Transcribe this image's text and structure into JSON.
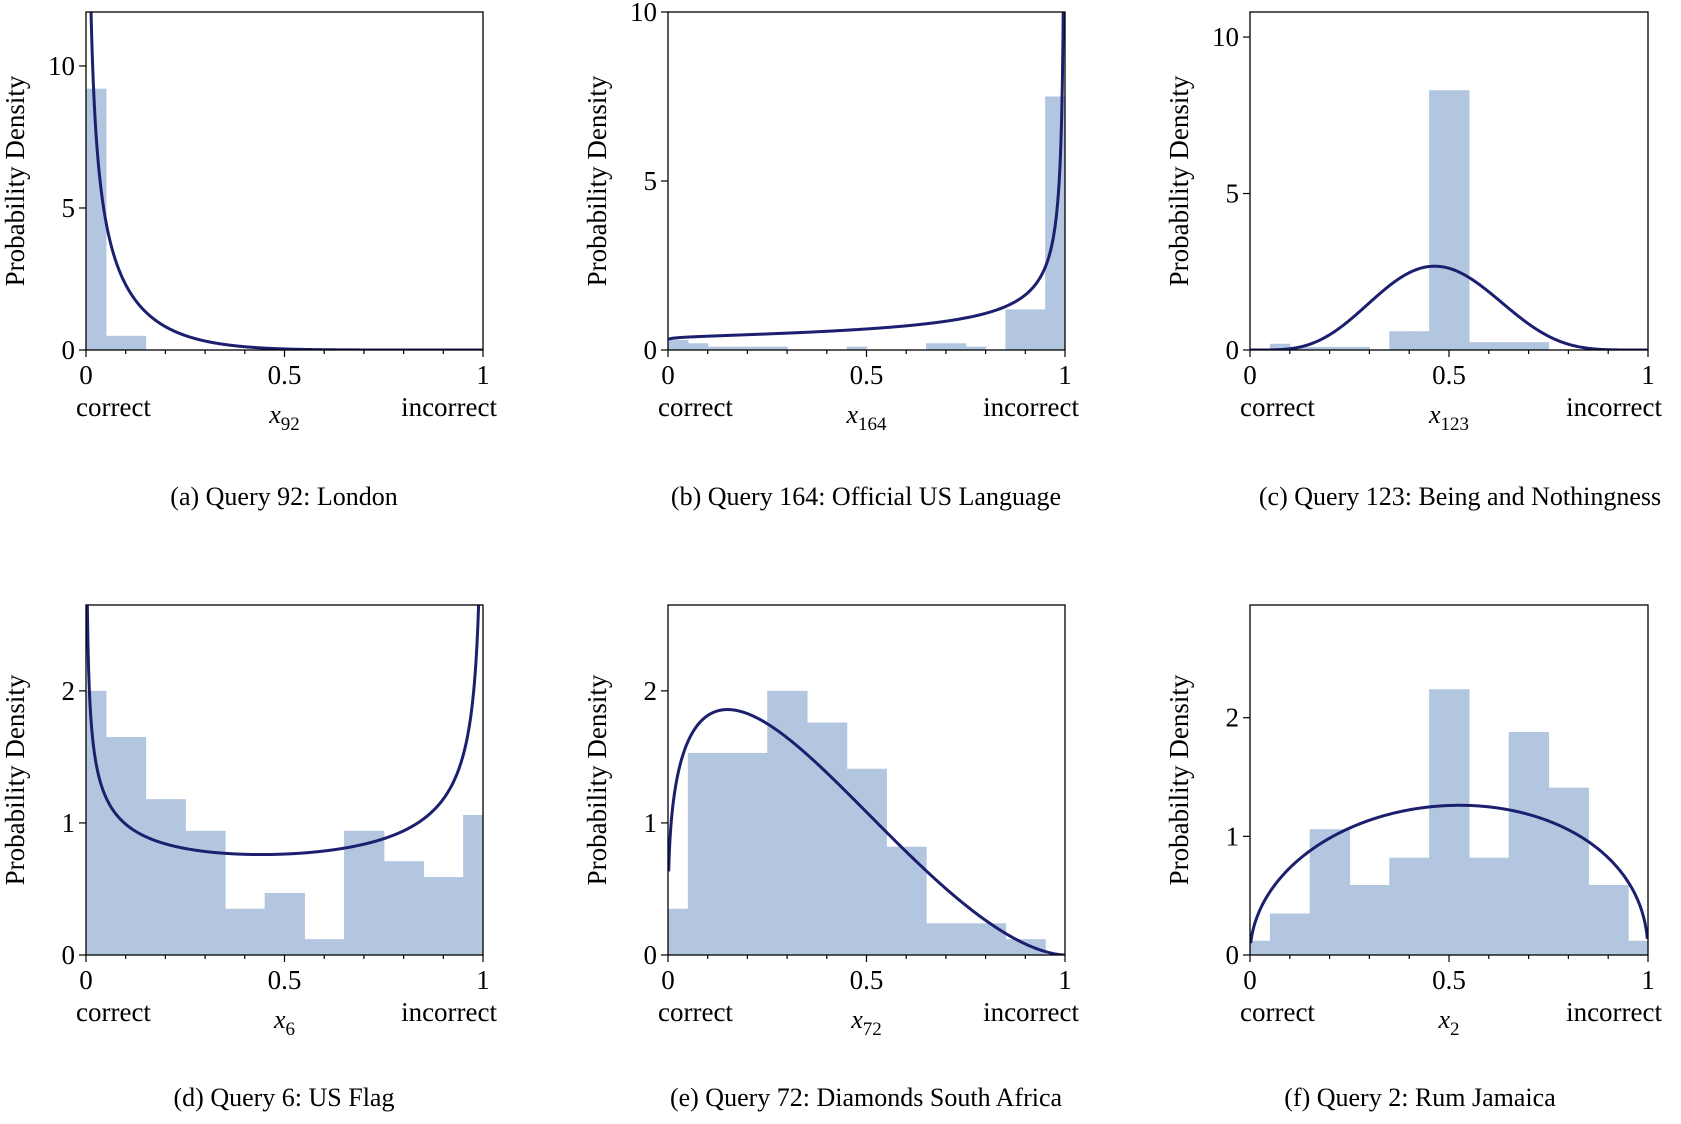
{
  "colors": {
    "bar": "#b3c6e0",
    "curve": "#1b1f6e",
    "axis": "#000000"
  },
  "chart_data": [
    {
      "type": "bar",
      "caption": "(a) Query 92: London",
      "ylabel": "Probability Density",
      "xvar": "x",
      "xsub": "92",
      "xlabel_left": "correct",
      "xlabel_right": "incorrect",
      "xticks": [
        "0",
        "0.5",
        "1"
      ],
      "xtick_values": [
        0,
        0.5,
        1
      ],
      "yticks": [
        "0",
        "5",
        "10"
      ],
      "ytick_values": [
        0,
        5,
        10
      ],
      "ylim": [
        0,
        11.9
      ],
      "xlim": [
        0,
        1
      ],
      "bin_width": 0.05,
      "bins": [
        {
          "x": 0.0,
          "h": 9.2
        },
        {
          "x": 0.05,
          "h": 0.5
        },
        {
          "x": 0.1,
          "h": 0.5
        },
        {
          "x": 0.45,
          "h": 0.05
        },
        {
          "x": 0.5,
          "h": 0.05
        },
        {
          "x": 0.55,
          "h": 0.05
        }
      ],
      "curve": {
        "a": 0.45,
        "b": 6.5,
        "scale": 1.0
      }
    },
    {
      "type": "bar",
      "caption": "(b) Query 164: Official US Language",
      "ylabel": "Probability Density",
      "xvar": "x",
      "xsub": "164",
      "xlabel_left": "correct",
      "xlabel_right": "incorrect",
      "xticks": [
        "0",
        "0.5",
        "1"
      ],
      "xtick_values": [
        0,
        0.5,
        1
      ],
      "yticks": [
        "0",
        "5",
        "10"
      ],
      "ytick_values": [
        0,
        5,
        10
      ],
      "ylim": [
        0,
        10
      ],
      "xlim": [
        0,
        1
      ],
      "bin_width": 0.05,
      "bins": [
        {
          "x": 0.0,
          "h": 0.3
        },
        {
          "x": 0.05,
          "h": 0.2
        },
        {
          "x": 0.1,
          "h": 0.1
        },
        {
          "x": 0.15,
          "h": 0.1
        },
        {
          "x": 0.2,
          "h": 0.1
        },
        {
          "x": 0.25,
          "h": 0.1
        },
        {
          "x": 0.45,
          "h": 0.1
        },
        {
          "x": 0.65,
          "h": 0.2
        },
        {
          "x": 0.7,
          "h": 0.2
        },
        {
          "x": 0.75,
          "h": 0.1
        },
        {
          "x": 0.85,
          "h": 1.2
        },
        {
          "x": 0.9,
          "h": 1.2
        },
        {
          "x": 0.95,
          "h": 7.5
        }
      ],
      "curve": {
        "a": 1.05,
        "b": 0.42,
        "scale": 1.0
      }
    },
    {
      "type": "bar",
      "caption": "(c) Query 123: Being and Nothingness",
      "ylabel": "Probability Density",
      "xvar": "x",
      "xsub": "123",
      "xlabel_left": "correct",
      "xlabel_right": "incorrect",
      "xticks": [
        "0",
        "0.5",
        "1"
      ],
      "xtick_values": [
        0,
        0.5,
        1
      ],
      "yticks": [
        "0",
        "5",
        "10"
      ],
      "ytick_values": [
        0,
        5,
        10
      ],
      "ylim": [
        0,
        10.8
      ],
      "xlim": [
        0,
        1
      ],
      "bin_width": 0.05,
      "bins": [
        {
          "x": 0.05,
          "h": 0.2
        },
        {
          "x": 0.1,
          "h": 0.1
        },
        {
          "x": 0.15,
          "h": 0.1
        },
        {
          "x": 0.2,
          "h": 0.1
        },
        {
          "x": 0.25,
          "h": 0.1
        },
        {
          "x": 0.35,
          "h": 0.6
        },
        {
          "x": 0.4,
          "h": 0.6
        },
        {
          "x": 0.45,
          "h": 8.3
        },
        {
          "x": 0.5,
          "h": 8.3
        },
        {
          "x": 0.55,
          "h": 0.25
        },
        {
          "x": 0.6,
          "h": 0.25
        },
        {
          "x": 0.65,
          "h": 0.25
        },
        {
          "x": 0.7,
          "h": 0.25
        }
      ],
      "curve": {
        "a": 5.5,
        "b": 6.2,
        "scale": 1.0
      }
    },
    {
      "type": "bar",
      "caption": "(d) Query 6: US Flag",
      "ylabel": "Probability Density",
      "xvar": "x",
      "xsub": "6",
      "xlabel_left": "correct",
      "xlabel_right": "incorrect",
      "xticks": [
        "0",
        "0.5",
        "1"
      ],
      "xtick_values": [
        0,
        0.5,
        1
      ],
      "yticks": [
        "0",
        "1",
        "2"
      ],
      "ytick_values": [
        0,
        1,
        2
      ],
      "ylim": [
        0,
        2.65
      ],
      "xlim": [
        0,
        1
      ],
      "bin_width": 0.05,
      "bins": [
        {
          "x": 0.0,
          "h": 2.0
        },
        {
          "x": 0.05,
          "h": 1.65
        },
        {
          "x": 0.1,
          "h": 1.65
        },
        {
          "x": 0.15,
          "h": 1.18
        },
        {
          "x": 0.2,
          "h": 1.18
        },
        {
          "x": 0.25,
          "h": 0.94
        },
        {
          "x": 0.3,
          "h": 0.94
        },
        {
          "x": 0.35,
          "h": 0.35
        },
        {
          "x": 0.4,
          "h": 0.35
        },
        {
          "x": 0.45,
          "h": 0.47
        },
        {
          "x": 0.5,
          "h": 0.47
        },
        {
          "x": 0.55,
          "h": 0.12
        },
        {
          "x": 0.6,
          "h": 0.12
        },
        {
          "x": 0.65,
          "h": 0.94
        },
        {
          "x": 0.7,
          "h": 0.94
        },
        {
          "x": 0.75,
          "h": 0.71
        },
        {
          "x": 0.8,
          "h": 0.71
        },
        {
          "x": 0.85,
          "h": 0.59
        },
        {
          "x": 0.9,
          "h": 0.59
        },
        {
          "x": 0.95,
          "h": 1.06
        }
      ],
      "curve": {
        "a": 0.7,
        "b": 0.62,
        "scale": 1.0
      }
    },
    {
      "type": "bar",
      "caption": "(e) Query 72: Diamonds South Africa",
      "ylabel": "Probability Density",
      "xvar": "x",
      "xsub": "72",
      "xlabel_left": "correct",
      "xlabel_right": "incorrect",
      "xticks": [
        "0",
        "0.5",
        "1"
      ],
      "xtick_values": [
        0,
        0.5,
        1
      ],
      "yticks": [
        "0",
        "1",
        "2"
      ],
      "ytick_values": [
        0,
        1,
        2
      ],
      "ylim": [
        0,
        2.65
      ],
      "xlim": [
        0,
        1
      ],
      "bin_width": 0.05,
      "bins": [
        {
          "x": 0.0,
          "h": 0.35
        },
        {
          "x": 0.05,
          "h": 1.53
        },
        {
          "x": 0.1,
          "h": 1.53
        },
        {
          "x": 0.15,
          "h": 1.53
        },
        {
          "x": 0.2,
          "h": 1.53
        },
        {
          "x": 0.25,
          "h": 2.0
        },
        {
          "x": 0.3,
          "h": 2.0
        },
        {
          "x": 0.35,
          "h": 1.76
        },
        {
          "x": 0.4,
          "h": 1.76
        },
        {
          "x": 0.45,
          "h": 1.41
        },
        {
          "x": 0.5,
          "h": 1.41
        },
        {
          "x": 0.55,
          "h": 0.82
        },
        {
          "x": 0.6,
          "h": 0.82
        },
        {
          "x": 0.65,
          "h": 0.24
        },
        {
          "x": 0.7,
          "h": 0.24
        },
        {
          "x": 0.75,
          "h": 0.24
        },
        {
          "x": 0.8,
          "h": 0.24
        },
        {
          "x": 0.85,
          "h": 0.12
        },
        {
          "x": 0.9,
          "h": 0.12
        }
      ],
      "curve": {
        "a": 1.3,
        "b": 2.7,
        "scale": 1.0
      }
    },
    {
      "type": "bar",
      "caption": "(f) Query 2: Rum Jamaica",
      "ylabel": "Probability Density",
      "xvar": "x",
      "xsub": "2",
      "xlabel_left": "correct",
      "xlabel_right": "incorrect",
      "xticks": [
        "0",
        "0.5",
        "1"
      ],
      "xtick_values": [
        0,
        0.5,
        1
      ],
      "yticks": [
        "0",
        "1",
        "2"
      ],
      "ytick_values": [
        0,
        1,
        2
      ],
      "ylim": [
        0,
        2.95
      ],
      "xlim": [
        0,
        1
      ],
      "bin_width": 0.05,
      "bins": [
        {
          "x": 0.0,
          "h": 0.12
        },
        {
          "x": 0.05,
          "h": 0.35
        },
        {
          "x": 0.1,
          "h": 0.35
        },
        {
          "x": 0.15,
          "h": 1.06
        },
        {
          "x": 0.2,
          "h": 1.06
        },
        {
          "x": 0.25,
          "h": 0.59
        },
        {
          "x": 0.3,
          "h": 0.59
        },
        {
          "x": 0.35,
          "h": 0.82
        },
        {
          "x": 0.4,
          "h": 0.82
        },
        {
          "x": 0.45,
          "h": 2.24
        },
        {
          "x": 0.5,
          "h": 2.24
        },
        {
          "x": 0.55,
          "h": 0.82
        },
        {
          "x": 0.6,
          "h": 0.82
        },
        {
          "x": 0.65,
          "h": 1.88
        },
        {
          "x": 0.7,
          "h": 1.88
        },
        {
          "x": 0.75,
          "h": 1.41
        },
        {
          "x": 0.8,
          "h": 1.41
        },
        {
          "x": 0.85,
          "h": 0.59
        },
        {
          "x": 0.9,
          "h": 0.59
        },
        {
          "x": 0.95,
          "h": 0.12
        }
      ],
      "curve": {
        "a": 1.5,
        "b": 1.45,
        "scale": 1.0
      }
    }
  ]
}
